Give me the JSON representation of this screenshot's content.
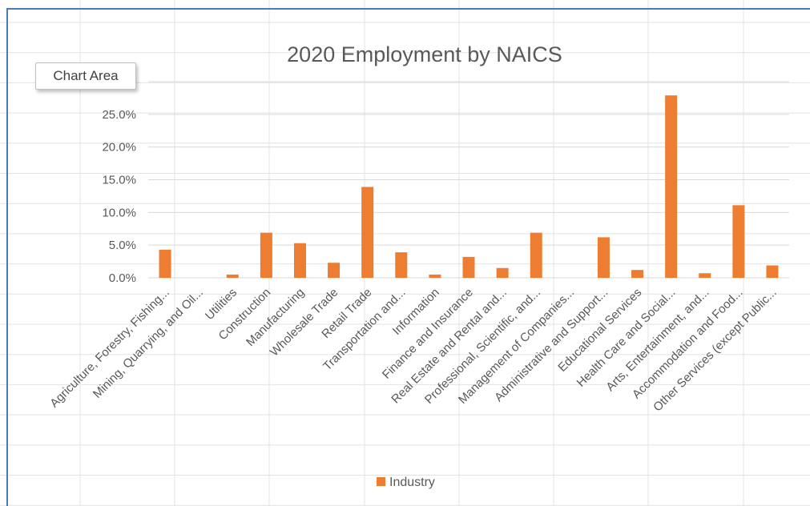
{
  "tooltip": {
    "text": "Chart Area"
  },
  "colors": {
    "bar": "#ed7d31",
    "grid": "#d9d9d9",
    "text": "#595959",
    "frame": "#4a78c2"
  },
  "chart_data": {
    "type": "bar",
    "title": "2020 Employment by NAICS",
    "xlabel": "",
    "ylabel": "",
    "ylim": [
      0,
      0.3
    ],
    "yticks": [
      "0.0%",
      "5.0%",
      "10.0%",
      "15.0%",
      "20.0%",
      "25.0%"
    ],
    "grid": true,
    "legend_position": "bottom",
    "categories": [
      "Agriculture, Forestry, Fishing...",
      "Mining, Quarrying, and Oil...",
      "Utilities",
      "Construction",
      "Manufacturing",
      "Wholesale Trade",
      "Retail Trade",
      "Transportation and...",
      "Information",
      "Finance and Insurance",
      "Real Estate and Rental and...",
      "Professional, Scientific, and...",
      "Management of Companies...",
      "Administrative and Support...",
      "Educational Services",
      "Health Care and Social...",
      "Arts, Entertainment, and...",
      "Accommodation and Food...",
      "Other Services (except Public..."
    ],
    "series": [
      {
        "name": "Industry",
        "values": [
          0.043,
          0.0,
          0.005,
          0.069,
          0.053,
          0.023,
          0.139,
          0.039,
          0.005,
          0.032,
          0.015,
          0.069,
          0.0,
          0.062,
          0.012,
          0.279,
          0.007,
          0.111,
          0.019
        ]
      }
    ]
  }
}
